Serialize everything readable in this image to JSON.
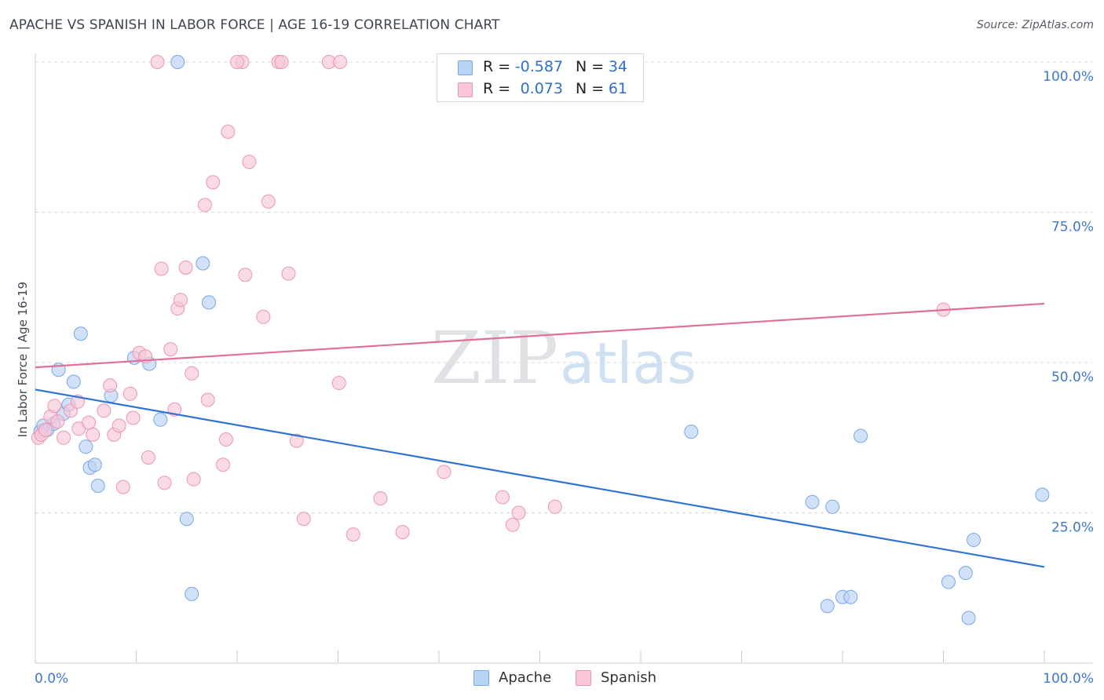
{
  "title": "APACHE VS SPANISH IN LABOR FORCE | AGE 16-19 CORRELATION CHART",
  "source": "Source: ZipAtlas.com",
  "colors": {
    "apache_fill": "#b9d3f4",
    "apache_stroke": "#7aa7e3",
    "apache_line": "#2f72d6",
    "spanish_fill": "#f8c6d6",
    "spanish_stroke": "#ec96b3",
    "spanish_line": "#e0709a",
    "tick_label": "#3f78cc",
    "grid": "#d5d8dd"
  },
  "legend_top": {
    "rows": [
      {
        "series": "Apache",
        "r_label": "R =",
        "r_value": "-0.587",
        "n_label": "N =",
        "n_value": "34"
      },
      {
        "series": "Spanish",
        "r_label": "R =",
        "r_value": "0.073",
        "n_label": "N =",
        "n_value": "61"
      }
    ]
  },
  "legend_bottom": [
    "Apache",
    "Spanish"
  ],
  "watermark": {
    "part1": "ZIP",
    "part2": "atlas"
  },
  "chart_data": {
    "type": "scatter",
    "title": "APACHE VS SPANISH IN LABOR FORCE | AGE 16-19 CORRELATION CHART",
    "xlabel": "",
    "ylabel": "In Labor Force | Age 16-19",
    "xlim": [
      0,
      100
    ],
    "ylim": [
      0,
      100
    ],
    "x_tick_labels": [
      "0.0%",
      "100.0%"
    ],
    "y_ticks": [
      25,
      50,
      75,
      100
    ],
    "y_tick_labels": [
      "25.0%",
      "50.0%",
      "75.0%",
      "100.0%"
    ],
    "grid": true,
    "series": [
      {
        "name": "Apache",
        "r": -0.587,
        "n": 34,
        "trend": {
          "x": [
            0,
            100
          ],
          "y": [
            45.5,
            16.0
          ]
        },
        "points": [
          [
            0.5,
            38.5
          ],
          [
            0.8,
            39.5
          ],
          [
            1.2,
            38.8
          ],
          [
            1.8,
            39.8
          ],
          [
            2.3,
            48.8
          ],
          [
            2.8,
            41.5
          ],
          [
            3.3,
            43.0
          ],
          [
            3.8,
            46.8
          ],
          [
            4.5,
            54.8
          ],
          [
            5.0,
            36.0
          ],
          [
            5.4,
            32.5
          ],
          [
            5.9,
            33.0
          ],
          [
            6.2,
            29.5
          ],
          [
            7.5,
            44.5
          ],
          [
            9.8,
            50.8
          ],
          [
            11.3,
            49.8
          ],
          [
            12.4,
            40.5
          ],
          [
            14.1,
            100.0
          ],
          [
            15.0,
            24.0
          ],
          [
            15.5,
            11.5
          ],
          [
            16.6,
            66.5
          ],
          [
            17.2,
            60.0
          ],
          [
            65.0,
            38.5
          ],
          [
            77.0,
            26.8
          ],
          [
            78.5,
            9.5
          ],
          [
            79.0,
            26.0
          ],
          [
            80.0,
            11.0
          ],
          [
            80.8,
            11.0
          ],
          [
            81.8,
            37.8
          ],
          [
            90.5,
            13.5
          ],
          [
            92.2,
            15.0
          ],
          [
            92.5,
            7.5
          ],
          [
            93.0,
            20.5
          ],
          [
            99.8,
            28.0
          ]
        ]
      },
      {
        "name": "Spanish",
        "r": 0.073,
        "n": 61,
        "trend": {
          "x": [
            0,
            100
          ],
          "y": [
            49.2,
            59.8
          ]
        },
        "points": [
          [
            0.3,
            37.5
          ],
          [
            0.6,
            38.0
          ],
          [
            1.0,
            38.8
          ],
          [
            1.5,
            41.0
          ],
          [
            1.9,
            42.8
          ],
          [
            2.2,
            40.2
          ],
          [
            2.8,
            37.5
          ],
          [
            3.5,
            42.0
          ],
          [
            4.2,
            43.5
          ],
          [
            4.3,
            39.0
          ],
          [
            5.3,
            40.0
          ],
          [
            5.7,
            38.0
          ],
          [
            6.8,
            42.0
          ],
          [
            7.4,
            46.2
          ],
          [
            7.8,
            38.0
          ],
          [
            8.3,
            39.5
          ],
          [
            8.7,
            29.3
          ],
          [
            9.4,
            44.8
          ],
          [
            9.7,
            40.8
          ],
          [
            10.3,
            51.6
          ],
          [
            10.9,
            51.0
          ],
          [
            11.2,
            34.2
          ],
          [
            12.1,
            100.0
          ],
          [
            12.5,
            65.6
          ],
          [
            12.8,
            30.0
          ],
          [
            13.4,
            52.2
          ],
          [
            13.8,
            42.2
          ],
          [
            14.1,
            59.0
          ],
          [
            14.4,
            60.4
          ],
          [
            14.9,
            65.8
          ],
          [
            15.5,
            48.2
          ],
          [
            15.7,
            30.6
          ],
          [
            16.8,
            76.2
          ],
          [
            17.1,
            43.8
          ],
          [
            17.6,
            80.0
          ],
          [
            18.6,
            33.0
          ],
          [
            18.9,
            37.2
          ],
          [
            19.1,
            88.4
          ],
          [
            20.5,
            100.0
          ],
          [
            20.8,
            64.6
          ],
          [
            21.2,
            83.4
          ],
          [
            22.6,
            57.6
          ],
          [
            23.1,
            76.8
          ],
          [
            24.1,
            100.0
          ],
          [
            24.4,
            100.0
          ],
          [
            25.1,
            64.8
          ],
          [
            25.9,
            37.0
          ],
          [
            26.6,
            24.0
          ],
          [
            29.1,
            100.0
          ],
          [
            30.1,
            46.6
          ],
          [
            30.2,
            100.0
          ],
          [
            31.5,
            21.4
          ],
          [
            34.2,
            27.4
          ],
          [
            36.4,
            21.8
          ],
          [
            40.5,
            31.8
          ],
          [
            46.3,
            27.6
          ],
          [
            47.3,
            23.0
          ],
          [
            47.9,
            25.0
          ],
          [
            51.5,
            26.0
          ],
          [
            90.0,
            58.8
          ],
          [
            20.0,
            100.0
          ]
        ]
      }
    ]
  }
}
